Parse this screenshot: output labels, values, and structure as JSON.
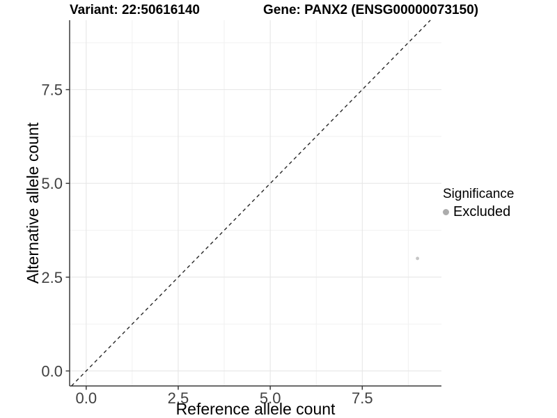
{
  "chart_data": {
    "type": "scatter",
    "title_left": "Variant: 22:50616140",
    "title_right": "Gene: PANX2 (ENSG00000073150)",
    "xlabel": "Reference allele count",
    "ylabel": "Alternative allele count",
    "xlim": [
      -0.45,
      9.65
    ],
    "ylim": [
      -0.4,
      9.35
    ],
    "x_ticks": [
      0,
      2.5,
      5,
      7.5
    ],
    "x_tick_labels": [
      "0.0",
      "2.5",
      "5.0",
      "7.5"
    ],
    "y_ticks": [
      0,
      2.5,
      5,
      7.5
    ],
    "y_tick_labels": [
      "0.0",
      "2.5",
      "5.0",
      "7.5"
    ],
    "minor_gridlines_x": [
      1.25,
      3.75,
      6.25,
      8.75
    ],
    "minor_gridlines_y": [
      1.25,
      3.75,
      6.25,
      8.75
    ],
    "grid": "major+minor",
    "points": [
      {
        "x": 9,
        "y": 3,
        "series": "Excluded"
      }
    ],
    "point_color": "#c5c5c5",
    "point_radius": 2.4,
    "identity_line": {
      "slope": 1,
      "intercept": 0,
      "style": "dashed",
      "color": "#262626"
    },
    "legend": {
      "title": "Significance",
      "position": "right",
      "items": [
        {
          "label": "Excluded",
          "color": "#acacac"
        }
      ]
    }
  },
  "colors": {
    "background": "#ffffff",
    "grid_major": "#e6e6e6",
    "grid_minor": "#f1f1f1",
    "axis_line": "#3a3a3a",
    "tick_text": "#404040"
  }
}
